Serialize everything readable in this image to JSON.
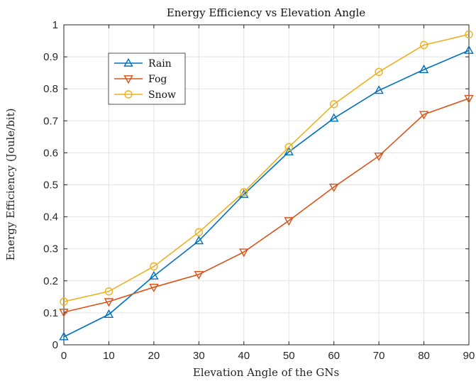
{
  "chart_data": {
    "type": "line",
    "title": "Energy Efficiency vs Elevation Angle",
    "xlabel": "Elevation Angle of the GNs",
    "ylabel": "Energy Efficiency (Joule/bit)",
    "x": [
      0,
      10,
      20,
      30,
      40,
      50,
      60,
      70,
      80,
      90
    ],
    "xlim": [
      0,
      90
    ],
    "ylim": [
      0,
      1
    ],
    "xticks": [
      0,
      10,
      20,
      30,
      40,
      50,
      60,
      70,
      80,
      90
    ],
    "yticks": [
      0,
      0.1,
      0.2,
      0.3,
      0.4,
      0.5,
      0.6,
      0.7,
      0.8,
      0.9,
      1
    ],
    "ytick_labels": [
      "0",
      "0.1",
      "0.2",
      "0.3",
      "0.4",
      "0.5",
      "0.6",
      "0.7",
      "0.8",
      "0.9",
      "1"
    ],
    "grid": true,
    "legend_position": "top-left",
    "series": [
      {
        "name": "Rain",
        "color": "#0072BD",
        "marker": "triangle-up",
        "values": [
          0.025,
          0.095,
          0.215,
          0.325,
          0.47,
          0.603,
          0.708,
          0.795,
          0.86,
          0.92
        ]
      },
      {
        "name": "Fog",
        "color": "#D95319",
        "marker": "triangle-down",
        "values": [
          0.102,
          0.135,
          0.18,
          0.22,
          0.29,
          0.388,
          0.493,
          0.59,
          0.72,
          0.77
        ]
      },
      {
        "name": "Snow",
        "color": "#EDB120",
        "marker": "circle",
        "values": [
          0.135,
          0.167,
          0.245,
          0.352,
          0.477,
          0.618,
          0.752,
          0.853,
          0.937,
          0.97
        ]
      }
    ]
  }
}
